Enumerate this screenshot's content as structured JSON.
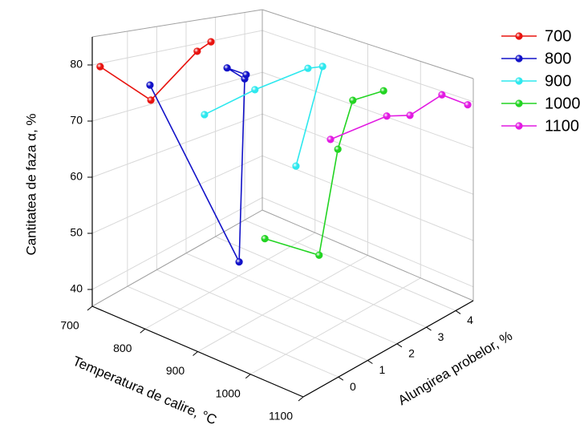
{
  "chart_data": {
    "type": "line3d",
    "xlabel": "Temperatura de calire, °C",
    "ylabel": "Alungirea probelor, %",
    "zlabel": "Cantitatea de faza α, %",
    "xlim": [
      700,
      1100
    ],
    "xticks": [
      700,
      800,
      900,
      1000,
      1100
    ],
    "ylim": [
      -1.2,
      4.6
    ],
    "yticks": [
      0,
      1,
      2,
      3,
      4
    ],
    "zlim": [
      37,
      85
    ],
    "zticks": [
      40,
      50,
      60,
      70,
      80
    ],
    "grid": true,
    "legend": "upper right",
    "series": [
      {
        "name": "700",
        "color": "#e8130f",
        "temperature": 700,
        "alungire": [
          -0.93,
          0.8,
          2.38,
          2.85
        ],
        "values": [
          79.4,
          70.8,
          78.4,
          79.8
        ]
      },
      {
        "name": "800",
        "color": "#1212c8",
        "temperature": 800,
        "alungire": [
          -1.03,
          2.01,
          2.2,
          1.6,
          2.25
        ],
        "values": [
          79.5,
          39.8,
          76.7,
          79.7,
          77.5
        ]
      },
      {
        "name": "900",
        "color": "#2ee8ee",
        "temperature": 900,
        "alungire": [
          -0.97,
          0.75,
          2.56,
          3.06,
          2.15
        ],
        "values": [
          77.5,
          80.0,
          82.1,
          81.9,
          63.0
        ]
      },
      {
        "name": "1000",
        "color": "#22d422",
        "temperature": 1000,
        "alungire": [
          -0.71,
          1.14,
          1.78,
          2.29,
          3.34
        ],
        "values": [
          59.0,
          52.0,
          70.8,
          79.6,
          80.2
        ]
      },
      {
        "name": "1100",
        "color": "#e21ae2",
        "temperature": 1100,
        "alungire": [
          -0.27,
          1.65,
          2.44,
          3.53,
          4.41
        ],
        "values": [
          78.8,
          80.8,
          80.0,
          82.8,
          79.6
        ]
      }
    ]
  }
}
